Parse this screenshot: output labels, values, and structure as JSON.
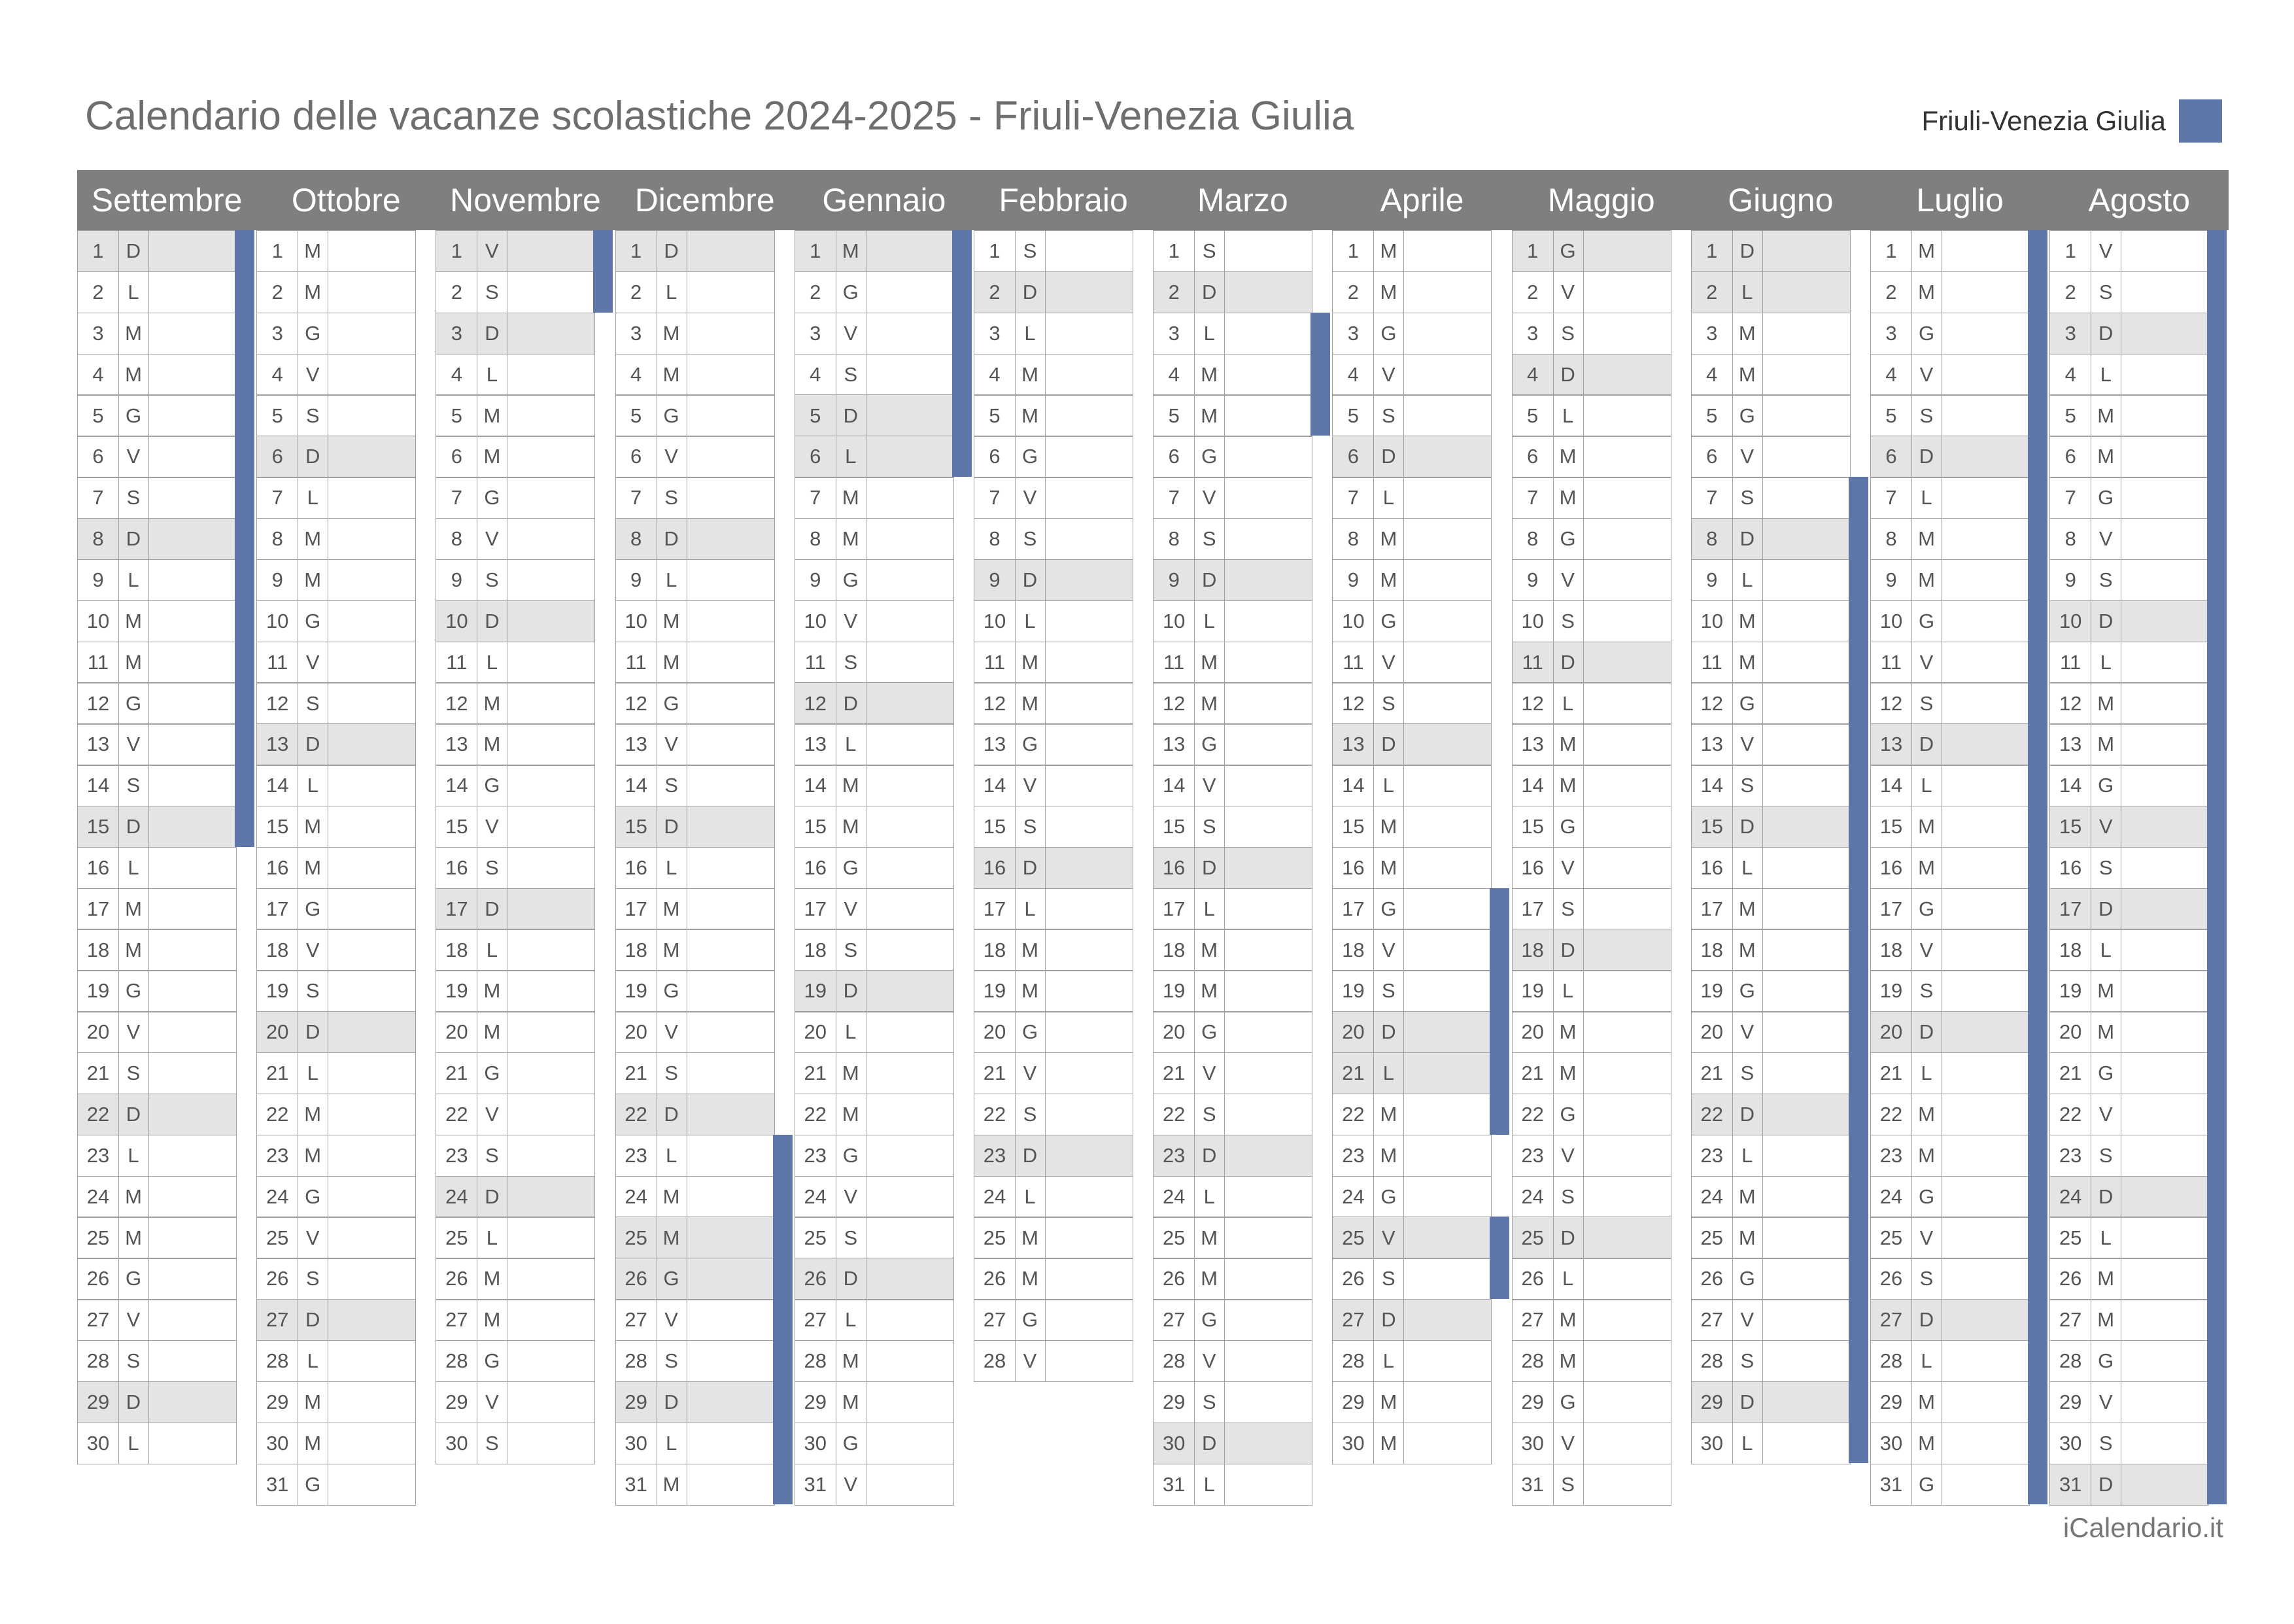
{
  "title": "Calendario delle vacanze scolastiche 2024-2025 - Friuli-Venezia Giulia",
  "legend": {
    "label": "Friuli-Venezia Giulia",
    "color": "#5f76a8"
  },
  "footer": "iCalendario.it",
  "colors": {
    "header": "#7f7f7f",
    "weekend": "#e4e4e4",
    "vacation": "#5f76a8"
  },
  "months": [
    {
      "name": "Settembre",
      "days": [
        "D",
        "L",
        "M",
        "M",
        "G",
        "V",
        "S",
        "D",
        "L",
        "M",
        "M",
        "G",
        "V",
        "S",
        "D",
        "L",
        "M",
        "M",
        "G",
        "V",
        "S",
        "D",
        "L",
        "M",
        "M",
        "G",
        "V",
        "S",
        "D",
        "L"
      ],
      "holidays": [
        1,
        8,
        15,
        22,
        29
      ],
      "vacation": [
        [
          1,
          15
        ]
      ]
    },
    {
      "name": "Ottobre",
      "days": [
        "M",
        "M",
        "G",
        "V",
        "S",
        "D",
        "L",
        "M",
        "M",
        "G",
        "V",
        "S",
        "D",
        "L",
        "M",
        "M",
        "G",
        "V",
        "S",
        "D",
        "L",
        "M",
        "M",
        "G",
        "V",
        "S",
        "D",
        "L",
        "M",
        "M",
        "G"
      ],
      "holidays": [
        6,
        13,
        20,
        27
      ],
      "vacation": []
    },
    {
      "name": "Novembre",
      "days": [
        "V",
        "S",
        "D",
        "L",
        "M",
        "M",
        "G",
        "V",
        "S",
        "D",
        "L",
        "M",
        "M",
        "G",
        "V",
        "S",
        "D",
        "L",
        "M",
        "M",
        "G",
        "V",
        "S",
        "D",
        "L",
        "M",
        "M",
        "G",
        "V",
        "S"
      ],
      "holidays": [
        1,
        3,
        10,
        17,
        24
      ],
      "vacation": [
        [
          1,
          2
        ]
      ]
    },
    {
      "name": "Dicembre",
      "days": [
        "D",
        "L",
        "M",
        "M",
        "G",
        "V",
        "S",
        "D",
        "L",
        "M",
        "M",
        "G",
        "V",
        "S",
        "D",
        "L",
        "M",
        "M",
        "G",
        "V",
        "S",
        "D",
        "L",
        "M",
        "M",
        "G",
        "V",
        "S",
        "D",
        "L",
        "M"
      ],
      "holidays": [
        1,
        8,
        15,
        22,
        25,
        26,
        29
      ],
      "vacation": [
        [
          23,
          31
        ]
      ]
    },
    {
      "name": "Gennaio",
      "days": [
        "M",
        "G",
        "V",
        "S",
        "D",
        "L",
        "M",
        "M",
        "G",
        "V",
        "S",
        "D",
        "L",
        "M",
        "M",
        "G",
        "V",
        "S",
        "D",
        "L",
        "M",
        "M",
        "G",
        "V",
        "S",
        "D",
        "L",
        "M",
        "M",
        "G",
        "V"
      ],
      "holidays": [
        1,
        5,
        6,
        12,
        19,
        26
      ],
      "vacation": [
        [
          1,
          6
        ]
      ]
    },
    {
      "name": "Febbraio",
      "days": [
        "S",
        "D",
        "L",
        "M",
        "M",
        "G",
        "V",
        "S",
        "D",
        "L",
        "M",
        "M",
        "G",
        "V",
        "S",
        "D",
        "L",
        "M",
        "M",
        "G",
        "V",
        "S",
        "D",
        "L",
        "M",
        "M",
        "G",
        "V"
      ],
      "holidays": [
        2,
        9,
        16,
        23
      ],
      "vacation": []
    },
    {
      "name": "Marzo",
      "days": [
        "S",
        "D",
        "L",
        "M",
        "M",
        "G",
        "V",
        "S",
        "D",
        "L",
        "M",
        "M",
        "G",
        "V",
        "S",
        "D",
        "L",
        "M",
        "M",
        "G",
        "V",
        "S",
        "D",
        "L",
        "M",
        "M",
        "G",
        "V",
        "S",
        "D",
        "L"
      ],
      "holidays": [
        2,
        9,
        16,
        23,
        30
      ],
      "vacation": [
        [
          3,
          5
        ]
      ]
    },
    {
      "name": "Aprile",
      "days": [
        "M",
        "M",
        "G",
        "V",
        "S",
        "D",
        "L",
        "M",
        "M",
        "G",
        "V",
        "S",
        "D",
        "L",
        "M",
        "M",
        "G",
        "V",
        "S",
        "D",
        "L",
        "M",
        "M",
        "G",
        "V",
        "S",
        "D",
        "L",
        "M",
        "M"
      ],
      "holidays": [
        6,
        13,
        20,
        21,
        25,
        27
      ],
      "vacation": [
        [
          17,
          22
        ],
        [
          25,
          26
        ]
      ]
    },
    {
      "name": "Maggio",
      "days": [
        "G",
        "V",
        "S",
        "D",
        "L",
        "M",
        "M",
        "G",
        "V",
        "S",
        "D",
        "L",
        "M",
        "M",
        "G",
        "V",
        "S",
        "D",
        "L",
        "M",
        "M",
        "G",
        "V",
        "S",
        "D",
        "L",
        "M",
        "M",
        "G",
        "V",
        "S"
      ],
      "holidays": [
        1,
        4,
        11,
        18,
        25
      ],
      "vacation": []
    },
    {
      "name": "Giugno",
      "days": [
        "D",
        "L",
        "M",
        "M",
        "G",
        "V",
        "S",
        "D",
        "L",
        "M",
        "M",
        "G",
        "V",
        "S",
        "D",
        "L",
        "M",
        "M",
        "G",
        "V",
        "S",
        "D",
        "L",
        "M",
        "M",
        "G",
        "V",
        "S",
        "D",
        "L"
      ],
      "holidays": [
        1,
        2,
        8,
        15,
        22,
        29
      ],
      "vacation": [
        [
          7,
          30
        ]
      ]
    },
    {
      "name": "Luglio",
      "days": [
        "M",
        "M",
        "G",
        "V",
        "S",
        "D",
        "L",
        "M",
        "M",
        "G",
        "V",
        "S",
        "D",
        "L",
        "M",
        "M",
        "G",
        "V",
        "S",
        "D",
        "L",
        "M",
        "M",
        "G",
        "V",
        "S",
        "D",
        "L",
        "M",
        "M",
        "G"
      ],
      "holidays": [
        6,
        13,
        20,
        27
      ],
      "vacation": [
        [
          1,
          31
        ]
      ]
    },
    {
      "name": "Agosto",
      "days": [
        "V",
        "S",
        "D",
        "L",
        "M",
        "M",
        "G",
        "V",
        "S",
        "D",
        "L",
        "M",
        "M",
        "G",
        "V",
        "S",
        "D",
        "L",
        "M",
        "M",
        "G",
        "V",
        "S",
        "D",
        "L",
        "M",
        "M",
        "G",
        "V",
        "S",
        "D"
      ],
      "holidays": [
        3,
        10,
        15,
        17,
        24,
        31
      ],
      "vacation": [
        [
          1,
          31
        ]
      ]
    }
  ]
}
